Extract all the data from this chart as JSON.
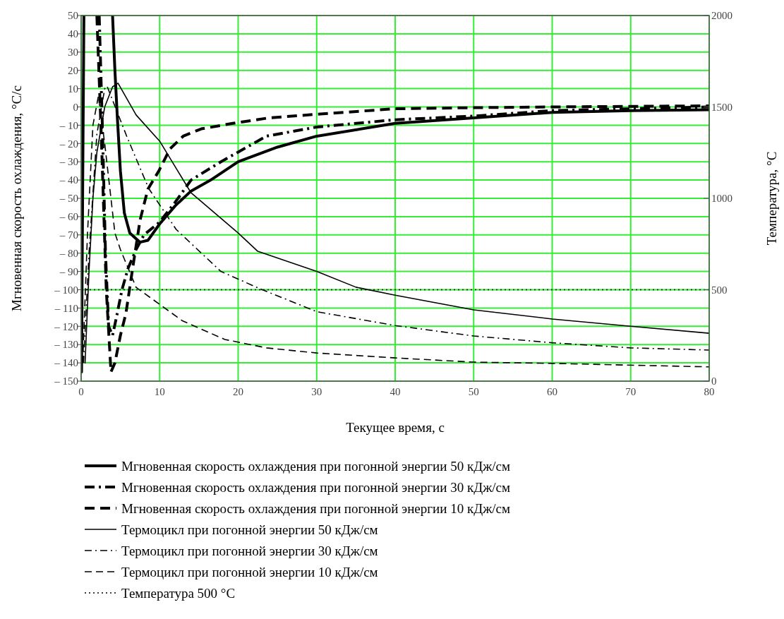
{
  "chart_data": {
    "type": "line",
    "xlabel": "Текущее время, с",
    "ylabel": "Мгновенная скорость охлаждения, °С/с",
    "y2label": "Температура, °С",
    "xlim": [
      0,
      80
    ],
    "xticks": [
      0,
      10,
      20,
      30,
      40,
      50,
      60,
      70,
      80
    ],
    "ylim": [
      -150,
      50
    ],
    "yticks": [
      {
        "value": -150,
        "label": "– 150"
      },
      {
        "value": -140,
        "label": "– 140"
      },
      {
        "value": -130,
        "label": "– 130"
      },
      {
        "value": -120,
        "label": "– 120"
      },
      {
        "value": -110,
        "label": "– 110"
      },
      {
        "value": -100,
        "label": "– 100"
      },
      {
        "value": -90,
        "label": "– 90"
      },
      {
        "value": -80,
        "label": "– 80"
      },
      {
        "value": -70,
        "label": "– 70"
      },
      {
        "value": -60,
        "label": "– 60"
      },
      {
        "value": -50,
        "label": "– 50"
      },
      {
        "value": -40,
        "label": "– 40"
      },
      {
        "value": -30,
        "label": "– 30"
      },
      {
        "value": -20,
        "label": "– 20"
      },
      {
        "value": -10,
        "label": "– 10"
      },
      0,
      10,
      20,
      30,
      40,
      50
    ],
    "y2lim": [
      0,
      2000
    ],
    "y2ticks": [
      0,
      500,
      1000,
      1500,
      2000
    ],
    "grid": true,
    "legend": "bottom",
    "series": [
      {
        "name": "Мгновенная скорость охлаждения при погонной энергии 50 кДж/см",
        "color": "#000000",
        "line_style": "solid",
        "x": [
          0.05,
          0.2,
          0.35,
          null,
          4.0,
          4.3,
          4.6,
          5,
          5.5,
          6.2,
          7.5,
          8.5,
          10,
          12,
          14,
          16.5,
          20,
          25,
          30,
          40,
          50,
          60,
          70,
          80
        ],
        "values": [
          -145,
          -40,
          50,
          null,
          50,
          20,
          -5,
          -35,
          -58,
          -69,
          -74,
          -73,
          -64,
          -54,
          -46,
          -40,
          -30,
          -22,
          -16,
          -9,
          -6,
          -3,
          -2,
          -1.5
        ]
      },
      {
        "name": "Мгновенная скорость охлаждения при погонной энергии 30 кДж/см",
        "color": "#000000",
        "line_style": "dashdot",
        "x": [
          2.3,
          2.7,
          3.1,
          3.5,
          4.0,
          4.5,
          5.2,
          6,
          7,
          8,
          10,
          12,
          14,
          17.8,
          23.6,
          30,
          40,
          50,
          60,
          70,
          80
        ],
        "values": [
          50,
          -10,
          -80,
          -120,
          -125,
          -115,
          -100,
          -88,
          -78,
          -70,
          -63,
          -52,
          -40,
          -30,
          -16,
          -11,
          -7,
          -5,
          -2,
          -1,
          0
        ]
      },
      {
        "name": "Мгновенная скорость охлаждения при погонной энергии 10 кДж/см",
        "color": "#000000",
        "line_style": "dashed",
        "x": [
          2.0,
          2.6,
          3.2,
          3.8,
          4.3,
          5,
          5.7,
          6.5,
          7.5,
          8.5,
          9.9,
          11.3,
          13,
          15.3,
          19.3,
          23.9,
          30,
          40,
          50,
          60,
          70,
          80
        ],
        "values": [
          50,
          -20,
          -100,
          -145,
          -140,
          -125,
          -113,
          -90,
          -62,
          -45,
          -35,
          -23,
          -16,
          -12,
          -9,
          -6,
          -4,
          -1,
          -0.4,
          0,
          0.3,
          0.6
        ]
      },
      {
        "name": "Термоцикл при погонной энергии 50 кДж/см",
        "color": "#000000",
        "line_style": "solid",
        "axis": "y2",
        "x": [
          0.5,
          1,
          1.5,
          2,
          3,
          4,
          4.7,
          7,
          10,
          14,
          20,
          22.5,
          30,
          35,
          40,
          50,
          60,
          70,
          80
        ],
        "values": [
          100,
          600,
          1000,
          1250,
          1500,
          1610,
          1630,
          1456,
          1313,
          1030,
          810,
          710,
          600,
          514,
          470,
          390,
          340,
          300,
          262
        ]
      },
      {
        "name": "Термоцикл при погонной энергии 30 кДж/см",
        "color": "#000000",
        "line_style": "dashdot",
        "axis": "y2",
        "x": [
          0.3,
          1,
          2,
          3,
          3.3,
          5.8,
          8.6,
          12.1,
          17.8,
          22.8,
          30,
          40,
          50,
          60,
          70,
          80
        ],
        "values": [
          100,
          700,
          1350,
          1600,
          1614,
          1340,
          1054,
          830,
          600,
          505,
          380,
          304,
          247,
          210,
          182,
          170
        ]
      },
      {
        "name": "Термоцикл при погонной энергии 10 кДж/см",
        "color": "#000000",
        "line_style": "dashed",
        "axis": "y2",
        "x": [
          0.2,
          0.8,
          1.5,
          2.2,
          3,
          4.3,
          5,
          7,
          12.9,
          18.3,
          23.6,
          30,
          40,
          50,
          60,
          80
        ],
        "values": [
          100,
          800,
          1400,
          1560,
          1300,
          810,
          720,
          513,
          330,
          228,
          182,
          154,
          127,
          104,
          97,
          78
        ]
      },
      {
        "name": "Температура 500 °С",
        "color": "#000000",
        "line_style": "dotted",
        "axis": "y2",
        "x": [
          0,
          80
        ],
        "values": [
          500,
          500
        ]
      }
    ]
  }
}
